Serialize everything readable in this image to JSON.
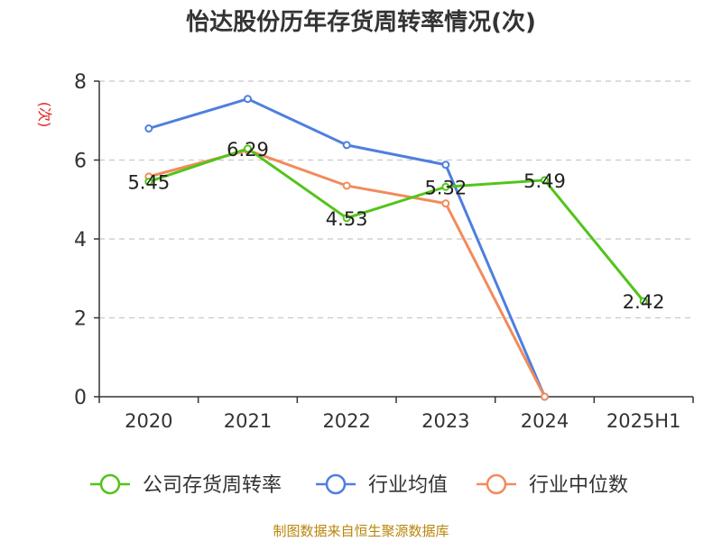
{
  "title": "怡达股份历年存货周转率情况(次)",
  "source": "制图数据来自恒生聚源数据库",
  "chart_data": {
    "type": "line",
    "title": "怡达股份历年存货周转率情况(次)",
    "ylabel": "(次)",
    "ylim": [
      0,
      8
    ],
    "yticks": [
      "0",
      "2",
      "4",
      "6",
      "8"
    ],
    "categories": [
      "2020",
      "2021",
      "2022",
      "2023",
      "2024",
      "2025H1"
    ],
    "grid": true,
    "legend_position": "bottom",
    "series": [
      {
        "name": "公司存货周转率",
        "color": "#52c41a",
        "values": [
          5.45,
          6.29,
          4.53,
          5.32,
          5.49,
          2.42
        ],
        "labels": [
          "5.45",
          "6.29",
          "4.53",
          "5.32",
          "5.49",
          "2.42"
        ]
      },
      {
        "name": "行业均值",
        "color": "#4e7fdd",
        "values": [
          6.8,
          7.55,
          6.38,
          5.88,
          0,
          null
        ]
      },
      {
        "name": "行业中位数",
        "color": "#f28b5a",
        "values": [
          5.58,
          6.25,
          5.35,
          4.9,
          0,
          null
        ]
      }
    ]
  }
}
